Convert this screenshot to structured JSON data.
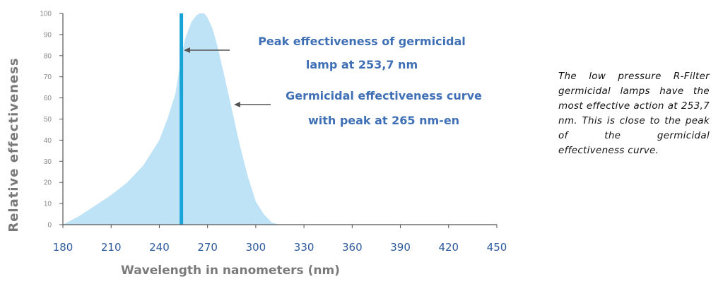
{
  "chart_data": {
    "type": "area",
    "title": "",
    "xlabel": "Wavelength in nanometers (nm)",
    "ylabel": "Relative  effectiveness",
    "xlim": [
      180,
      450
    ],
    "ylim": [
      0,
      100
    ],
    "x_ticks": [
      "180",
      "210",
      "240",
      "270",
      "300",
      "330",
      "360",
      "390",
      "420",
      "450"
    ],
    "y_ticks": [
      "0",
      "10",
      "20",
      "30",
      "40",
      "50",
      "60",
      "70",
      "80",
      "90",
      "100"
    ],
    "grid": false,
    "legend": "none",
    "series": [
      {
        "x": [
          180,
          190,
          200,
          210,
          220,
          230,
          240,
          245,
          250,
          253,
          256,
          260,
          263,
          265,
          268,
          270,
          273,
          276,
          280,
          285,
          290,
          295,
          300,
          305,
          310,
          315
        ],
        "y": [
          0,
          4,
          9,
          14,
          20,
          28,
          40,
          50,
          62,
          76,
          88,
          96,
          99,
          100,
          100,
          98,
          93,
          85,
          72,
          55,
          38,
          23,
          11,
          5,
          1,
          0
        ]
      }
    ],
    "vline": {
      "x": 253.7,
      "y_top": 100
    },
    "annotations": [
      {
        "lines": [
          "Peak effectiveness of germicidal",
          "lamp at 253,7 nm"
        ]
      },
      {
        "lines": [
          "Germicidal effectiveness curve",
          "with peak at 265 nm-en"
        ]
      }
    ],
    "colors": {
      "fill": "#bfe3f6",
      "vline": "#1aa3d6",
      "axis": "#555555",
      "annotation": "#3f6fb5",
      "xtick": "#2e5b9c"
    }
  },
  "side_note": "The low pressure R-Filter germicidal lamps have the most effective action at 253,7 nm. This is close to the peak of the germicidal effectiveness curve."
}
